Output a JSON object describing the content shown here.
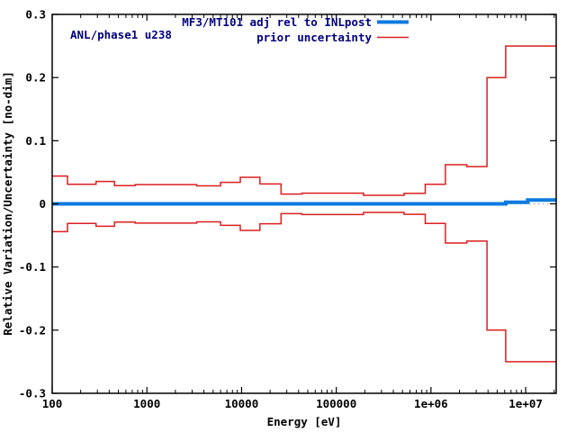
{
  "chart_data": {
    "type": "line",
    "corner_label": "ANL/phase1 u238",
    "xlabel": "Energy [eV]",
    "ylabel": "Relative Variation/Uncertainty [no-dim]",
    "xscale": "log",
    "xlim": [
      100,
      21000000
    ],
    "ylim": [
      -0.3,
      0.3
    ],
    "grid": false,
    "zero_axis_dotted": true,
    "xticks": [
      {
        "value": 100,
        "label": "100"
      },
      {
        "value": 1000,
        "label": "1000"
      },
      {
        "value": 10000,
        "label": "10000"
      },
      {
        "value": 100000,
        "label": "100000"
      },
      {
        "value": 1000000,
        "label": "1e+06"
      },
      {
        "value": 10000000,
        "label": "1e+07"
      }
    ],
    "yticks": [
      {
        "value": 0.3,
        "label": "0.3"
      },
      {
        "value": 0.2,
        "label": "0.2"
      },
      {
        "value": 0.1,
        "label": "0.1"
      },
      {
        "value": 0,
        "label": "0"
      },
      {
        "value": -0.1,
        "label": "-0.1"
      },
      {
        "value": -0.2,
        "label": "-0.2"
      },
      {
        "value": -0.3,
        "label": "-0.3"
      }
    ],
    "legend": {
      "position": "top-center-inside",
      "entries": [
        {
          "label": "MF3/MT101 adj rel to INLpost",
          "color": "#0b7ae0",
          "line_width": 4
        },
        {
          "label": "prior uncertainty",
          "color": "#dc1f1f",
          "line_width": 1.5
        }
      ]
    },
    "series": [
      {
        "name": "MF3/MT101 adj rel to INLpost",
        "style": "step",
        "color": "#0b7ae0",
        "line_width": 4,
        "boundaries_eV": [
          100,
          6150000,
          10500000,
          21000000
        ],
        "values": [
          0.0,
          0.0025,
          0.006
        ]
      },
      {
        "name": "prior uncertainty",
        "style": "step-symmetric",
        "color": "#dc1f1f",
        "line_width": 1.5,
        "boundaries_eV": [
          100,
          145,
          290,
          455,
          750,
          1250,
          3360,
          6000,
          9700,
          15600,
          26100,
          43400,
          194000,
          520000,
          870000,
          1420000,
          2390000,
          3900000,
          6150000,
          21000000
        ],
        "values": [
          0.044,
          0.031,
          0.0355,
          0.029,
          0.0305,
          0.0305,
          0.0285,
          0.034,
          0.042,
          0.0315,
          0.0155,
          0.017,
          0.0135,
          0.0165,
          0.031,
          0.062,
          0.059,
          0.2,
          0.25
        ]
      }
    ],
    "text_color": "#000080",
    "axis_color": "#000000"
  }
}
